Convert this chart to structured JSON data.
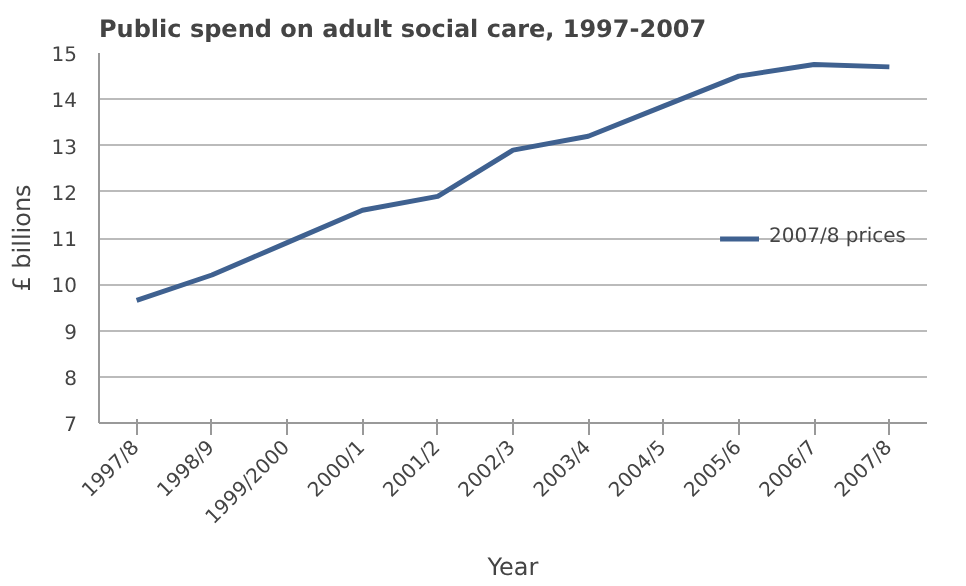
{
  "chart_data": {
    "type": "line",
    "title": "Public spend on adult social care, 1997-2007",
    "xlabel": "Year",
    "ylabel": "£ billions",
    "categories": [
      "1997/8",
      "1998/9",
      "1999/2000",
      "2000/1",
      "2001/2",
      "2002/3",
      "2003/4",
      "2004/5",
      "2005/6",
      "2006/7",
      "2007/8"
    ],
    "series": [
      {
        "name": "2007/8 prices",
        "color": "#3f6190",
        "values": [
          9.65,
          10.2,
          10.9,
          11.6,
          11.9,
          12.9,
          13.2,
          13.85,
          14.5,
          14.75,
          14.7
        ]
      }
    ],
    "ylim": [
      7,
      15
    ],
    "yticks": [
      7,
      8,
      9,
      10,
      11,
      12,
      13,
      14,
      15
    ],
    "grid": "y",
    "legend": "right",
    "marker": "none",
    "line_style": "solid"
  }
}
